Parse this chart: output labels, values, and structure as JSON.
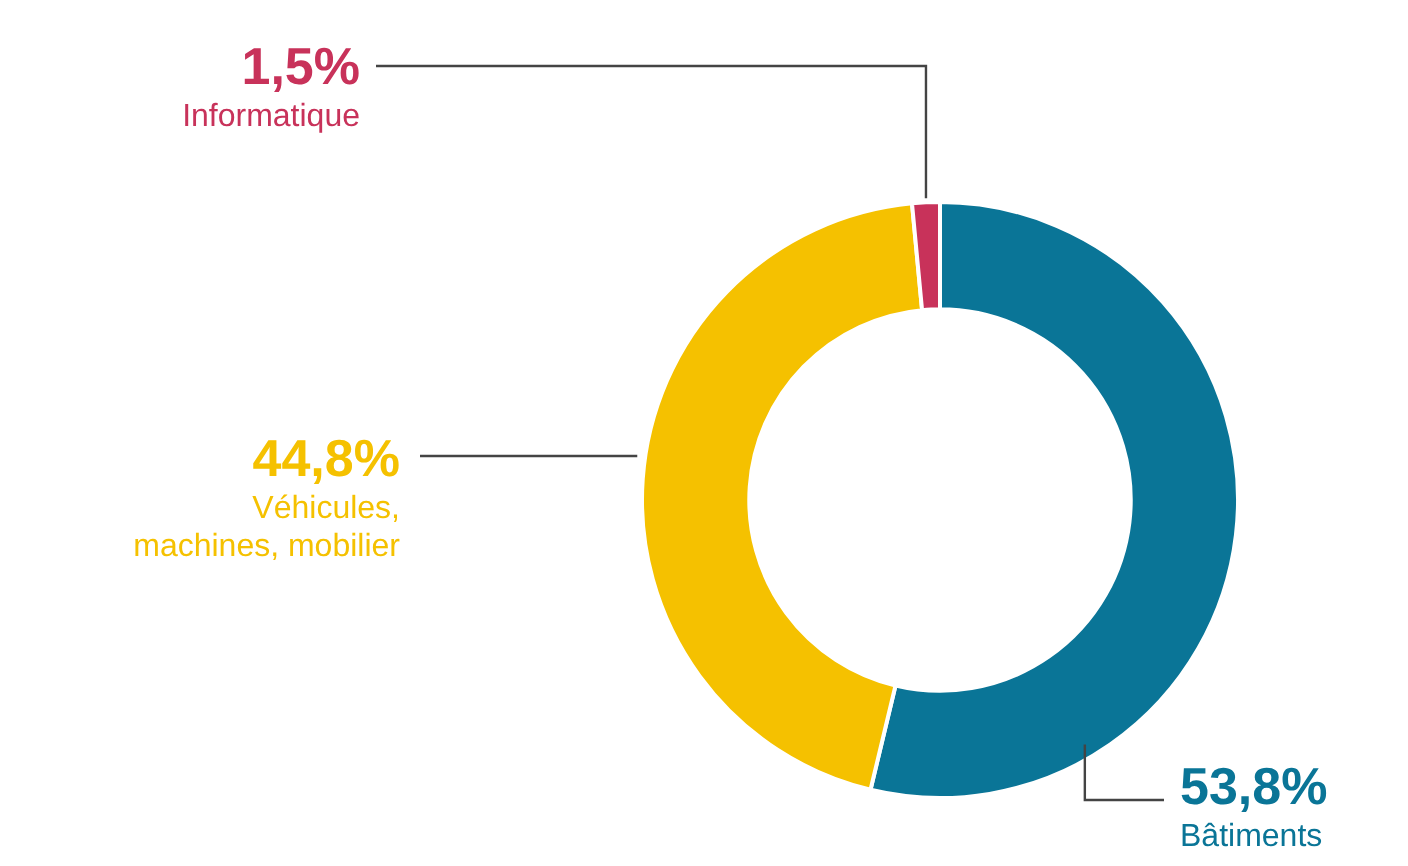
{
  "chart_data": {
    "type": "donut",
    "categories": [
      "Bâtiments",
      "Véhicules, machines, mobilier",
      "Informatique"
    ],
    "values": [
      53.8,
      44.8,
      1.5
    ],
    "colors": [
      "#0a7597",
      "#f5c100",
      "#c8325a"
    ],
    "value_labels": [
      "53,8%",
      "44,8%",
      "1,5%"
    ]
  }
}
